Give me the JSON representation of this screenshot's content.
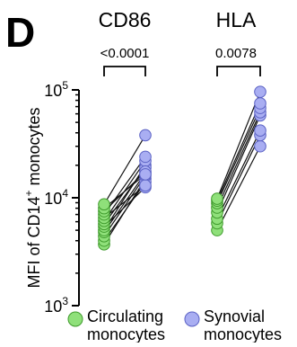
{
  "chart_data": {
    "type": "scatter",
    "panel_label": "D",
    "ylabel": "MFI of CD14⁺ monocytes",
    "ylabel_parts": [
      "MFI of CD14",
      "+",
      " monocytes"
    ],
    "yscale": "log",
    "ylim": [
      1000,
      100000
    ],
    "yticks": [
      {
        "value": 1000,
        "base": "10",
        "exp": "3"
      },
      {
        "value": 10000,
        "base": "10",
        "exp": "4"
      },
      {
        "value": 100000,
        "base": "10",
        "exp": "5"
      }
    ],
    "groups": [
      {
        "name": "CD86",
        "p_value": "<0.0001",
        "pairs": [
          [
            3700,
            15000
          ],
          [
            4000,
            14000
          ],
          [
            4400,
            16000
          ],
          [
            4800,
            17000
          ],
          [
            5000,
            20000
          ],
          [
            5400,
            12500
          ],
          [
            5700,
            19000
          ],
          [
            6100,
            22000
          ],
          [
            6500,
            13000
          ],
          [
            7000,
            24000
          ],
          [
            7500,
            17500
          ],
          [
            8000,
            16500
          ],
          [
            8700,
            38000
          ]
        ]
      },
      {
        "name": "HLA",
        "p_value": "0.0078",
        "pairs": [
          [
            5000,
            30000
          ],
          [
            5800,
            38000
          ],
          [
            6400,
            42000
          ],
          [
            7300,
            58000
          ],
          [
            8100,
            62000
          ],
          [
            8900,
            68000
          ],
          [
            9400,
            75000
          ],
          [
            9800,
            96000
          ]
        ]
      }
    ],
    "series": [
      {
        "name": "Circulating monocytes",
        "label_lines": [
          "Circulating",
          "monocytes"
        ],
        "color": "#8fe07a",
        "edge": "#3f9a2c"
      },
      {
        "name": "Synovial monocytes",
        "label_lines": [
          "Synovial",
          "monocytes"
        ],
        "color": "#a9aef2",
        "edge": "#5b62c4"
      }
    ],
    "grid": false
  }
}
